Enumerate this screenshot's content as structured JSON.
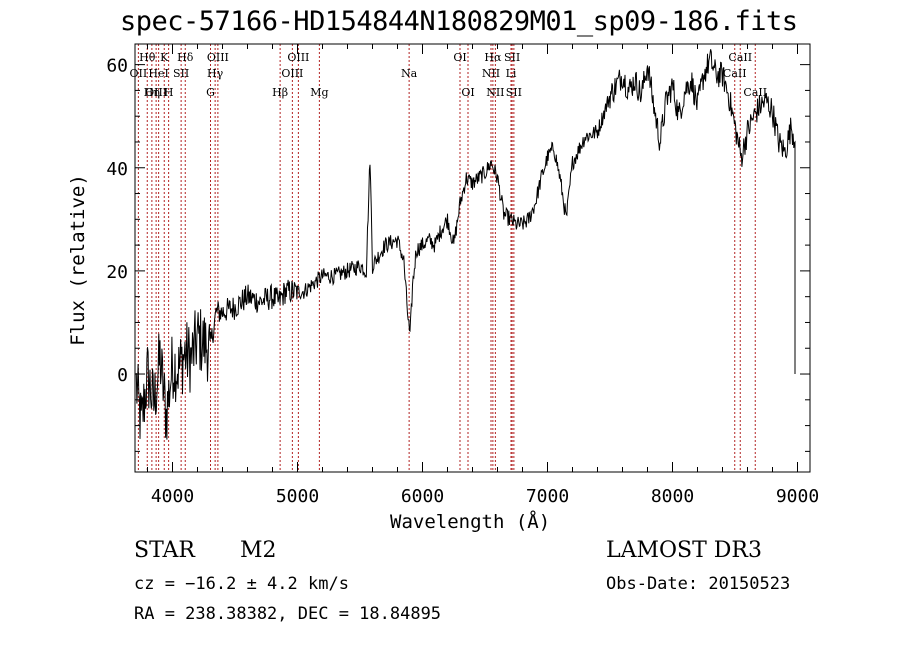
{
  "header": {
    "title": "spec-57166-HD154844N180829M01_sp09-186.fits"
  },
  "info": {
    "object_class": "STAR",
    "subclass": "M2",
    "survey": "LAMOST DR3",
    "cz": "cz = −16.2 ± 4.2 km/s",
    "obs_date": "Obs-Date: 20150523",
    "ra_dec": "RA = 238.38382, DEC =  18.84895"
  },
  "chart_data": {
    "type": "line",
    "title": "spec-57166-HD154844N180829M01_sp09-186.fits",
    "xlabel": "Wavelength (Å)",
    "ylabel": "Flux (relative)",
    "xlim": [
      3700,
      9100
    ],
    "ylim": [
      -19,
      64
    ],
    "x_ticks": [
      4000,
      5000,
      6000,
      7000,
      8000,
      9000
    ],
    "y_ticks": [
      0,
      20,
      40,
      60
    ],
    "x_tick_labels": [
      "4000",
      "5000",
      "6000",
      "7000",
      "8000",
      "9000"
    ],
    "y_tick_labels": [
      "0",
      "20",
      "40",
      "60"
    ],
    "grid": false,
    "line_color": "#000000",
    "marker_color": "#b22222",
    "series": [
      {
        "x": [
          3710,
          3750,
          3800,
          3850,
          3900,
          3950,
          4000,
          4050,
          4100,
          4150,
          4200,
          4250,
          4300,
          4350,
          4400,
          4500,
          4600,
          4700,
          4800,
          4850,
          4900,
          5000,
          5050,
          5100,
          5200,
          5300,
          5400,
          5500,
          5550,
          5580,
          5600,
          5700,
          5800,
          5850,
          5880,
          5900,
          5920,
          5950,
          6000,
          6050,
          6100,
          6150,
          6200,
          6250,
          6300,
          6350,
          6400,
          6450,
          6500,
          6550,
          6600,
          6650,
          6700,
          6750,
          6800,
          6850,
          6900,
          6950,
          7000,
          7050,
          7100,
          7150,
          7200,
          7300,
          7400,
          7500,
          7600,
          7650,
          7700,
          7750,
          7800,
          7850,
          7900,
          7950,
          8000,
          8050,
          8100,
          8150,
          8200,
          8250,
          8300,
          8350,
          8400,
          8450,
          8500,
          8550,
          8600,
          8650,
          8700,
          8750,
          8800,
          8850,
          8900,
          8950,
          8980
        ],
        "y": [
          -2,
          -10,
          0,
          -6,
          3,
          -8,
          2,
          1,
          4,
          3,
          7,
          6,
          5,
          12,
          12,
          13,
          15,
          14,
          15,
          14,
          16,
          16,
          16,
          17,
          19,
          19,
          20,
          21,
          20,
          42,
          21,
          25,
          26,
          22,
          12,
          7,
          17,
          24,
          25,
          26,
          25,
          28,
          30,
          25,
          33,
          38,
          37,
          38,
          39,
          41,
          38,
          31,
          30,
          29,
          29,
          30,
          33,
          38,
          42,
          44,
          38,
          30,
          41,
          46,
          47,
          54,
          58,
          55,
          57,
          54,
          60,
          52,
          45,
          53,
          56,
          50,
          55,
          57,
          52,
          58,
          61,
          58,
          58,
          54,
          48,
          42,
          47,
          50,
          52,
          53,
          51,
          45,
          43,
          48,
          45
        ]
      }
    ],
    "line_markers": [
      {
        "label": "Hθ",
        "x": 3798,
        "row": 1
      },
      {
        "label": "OII",
        "x": 3727,
        "row": 2
      },
      {
        "label": "OIII",
        "x": 3869,
        "row": 3
      },
      {
        "label": "K",
        "x": 3934,
        "row": 1
      },
      {
        "label": "HeI",
        "x": 3889,
        "row": 2
      },
      {
        "label": "Hη",
        "x": 3835,
        "row": 3
      },
      {
        "label": "SII",
        "x": 4069,
        "row": 2
      },
      {
        "label": "H",
        "x": 3969,
        "row": 3
      },
      {
        "label": "Hδ",
        "x": 4102,
        "row": 1
      },
      {
        "label": "OIII",
        "x": 4363,
        "row": 1
      },
      {
        "label": "Hγ",
        "x": 4341,
        "row": 2
      },
      {
        "label": "G",
        "x": 4304,
        "row": 3
      },
      {
        "label": "Hβ",
        "x": 4861,
        "row": 3
      },
      {
        "label": "OIII",
        "x": 5007,
        "row": 1
      },
      {
        "label": "OIII",
        "x": 4959,
        "row": 2
      },
      {
        "label": "Mg",
        "x": 5175,
        "row": 3
      },
      {
        "label": "Na",
        "x": 5893,
        "row": 2
      },
      {
        "label": "OI",
        "x": 6300,
        "row": 1
      },
      {
        "label": "OI",
        "x": 6364,
        "row": 3
      },
      {
        "label": "Hα",
        "x": 6563,
        "row": 1
      },
      {
        "label": "SII",
        "x": 6717,
        "row": 1
      },
      {
        "label": "NII",
        "x": 6548,
        "row": 2
      },
      {
        "label": "Li",
        "x": 6708,
        "row": 2
      },
      {
        "label": "NII",
        "x": 6583,
        "row": 3
      },
      {
        "label": "SII",
        "x": 6731,
        "row": 3
      },
      {
        "label": "CaII",
        "x": 8542,
        "row": 1
      },
      {
        "label": "CaII",
        "x": 8498,
        "row": 2
      },
      {
        "label": "CaII",
        "x": 8662,
        "row": 3
      }
    ]
  }
}
